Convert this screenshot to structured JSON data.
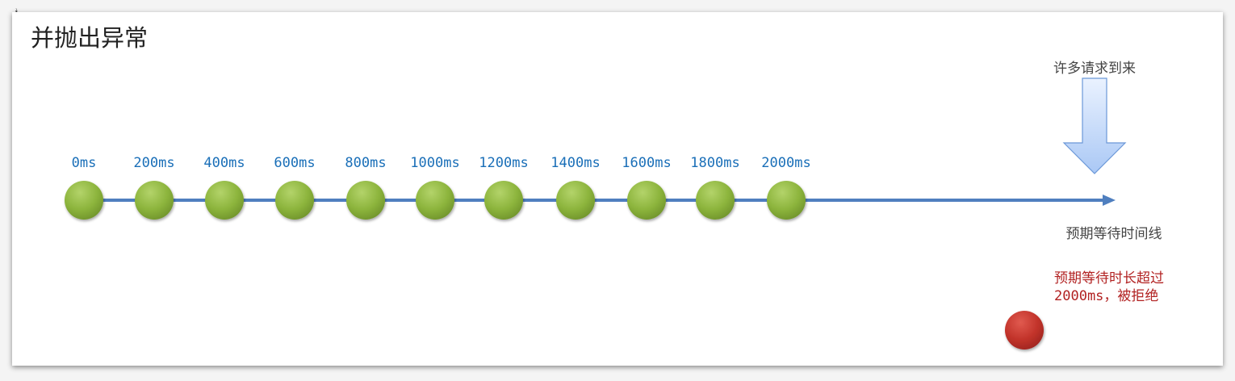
{
  "slide": {
    "title": "并抛出异常",
    "corner_mark": "•̀"
  },
  "timeline": {
    "ticks": [
      "0ms",
      "200ms",
      "400ms",
      "600ms",
      "800ms",
      "1000ms",
      "1200ms",
      "1400ms",
      "1600ms",
      "1800ms",
      "2000ms"
    ],
    "line_caption": "预期等待时间线",
    "line_color": "#4f7fbf",
    "node_color": "#8cb43c",
    "label_color": "#1a6fb8"
  },
  "incoming": {
    "caption": "许多请求到来",
    "arrow_color": "#c9dcff"
  },
  "rejected": {
    "note_line1": "预期等待时长超过",
    "note_line2_mono": "2000ms",
    "note_line2_rest": "，被拒绝",
    "color": "#c0392b"
  }
}
